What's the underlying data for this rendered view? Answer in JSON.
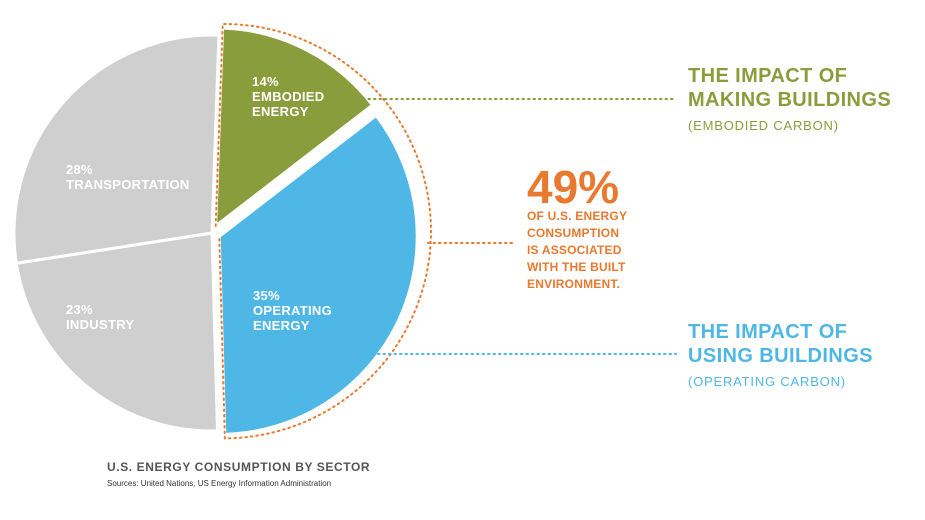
{
  "chart_data": {
    "type": "pie",
    "title": "U.S. ENERGY CONSUMPTION BY SECTOR",
    "source": "Sources: United Nations, US Energy Information Administration",
    "slices": [
      {
        "label_lines": [
          "14%",
          "EMBODIED",
          "ENERGY"
        ],
        "name": "EMBODIED ENERGY",
        "value": 14,
        "color": "#8a9d3c",
        "exploded": true
      },
      {
        "label_lines": [
          "35%",
          "OPERATING",
          "ENERGY"
        ],
        "name": "OPERATING ENERGY",
        "value": 35,
        "color": "#4fb7e5",
        "exploded": true
      },
      {
        "label_lines": [
          "23%",
          "INDUSTRY"
        ],
        "name": "INDUSTRY",
        "value": 23,
        "color": "#cfcfcf",
        "exploded": false
      },
      {
        "label_lines": [
          "28%",
          "TRANSPORTATION"
        ],
        "name": "TRANSPORTATION",
        "value": 28,
        "color": "#cfcfcf",
        "exploded": false
      }
    ]
  },
  "callouts": {
    "making": {
      "title_lines": [
        "THE IMPACT OF",
        "MAKING BUILDINGS"
      ],
      "subtitle": "(EMBODIED CARBON)",
      "color": "#8a9d3c"
    },
    "using": {
      "title_lines": [
        "THE IMPACT OF",
        "USING BUILDINGS"
      ],
      "subtitle": "(OPERATING CARBON)",
      "color": "#4fb7e5"
    },
    "built": {
      "percent": "49%",
      "lines": [
        "OF U.S. ENERGY",
        "CONSUMPTION",
        "IS ASSOCIATED",
        "WITH THE BUILT",
        "ENVIRONMENT."
      ],
      "color": "#e8792e"
    }
  }
}
